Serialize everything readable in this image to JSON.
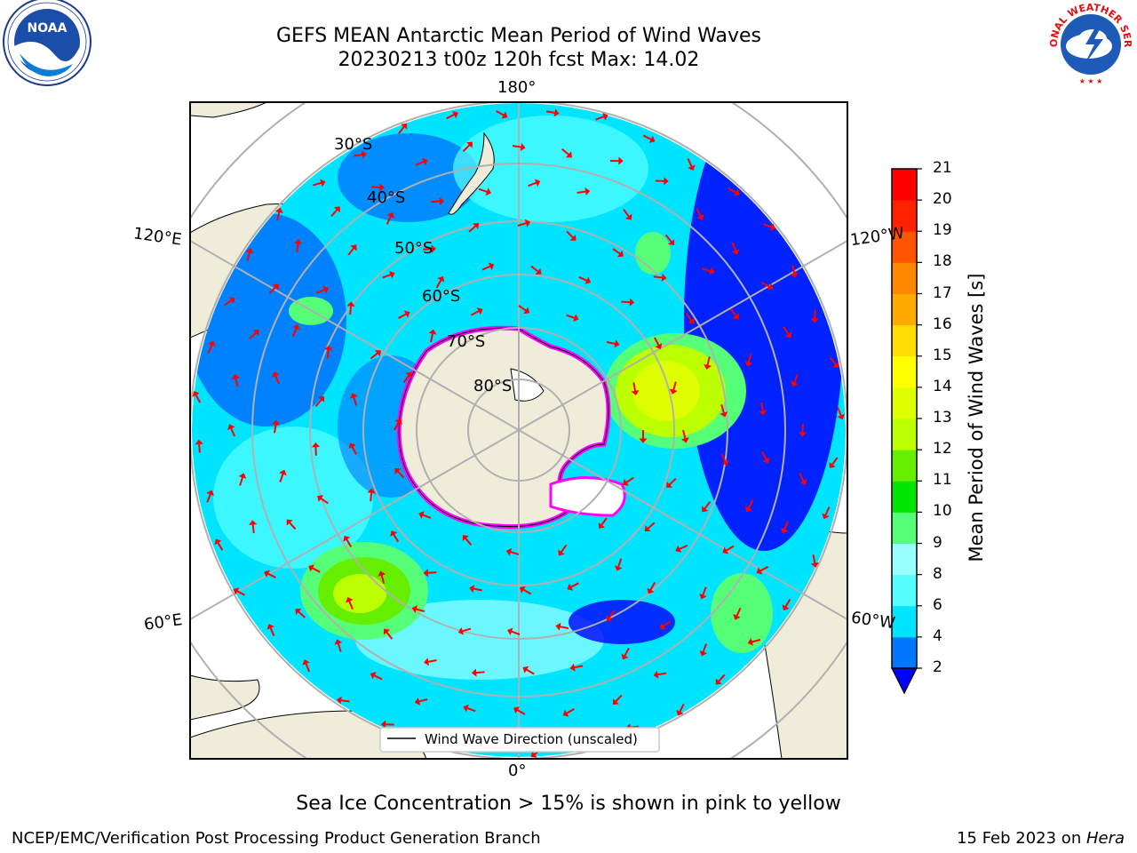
{
  "header": {
    "title_line1": "GEFS MEAN Antarctic Mean Period of Wind Waves",
    "title_line2": "20230213 t00z 120h fcst   Max: 14.02"
  },
  "logos": {
    "left": {
      "name": "NOAA",
      "ring_text": "NATIONAL OCEANIC AND ATMOSPHERIC ADMINISTRATION · U.S. DEPARTMENT OF COMMERCE"
    },
    "right": {
      "name": "NATIONAL WEATHER SERVICE"
    }
  },
  "map": {
    "lon_labels": {
      "top": "180°",
      "bottom": "0°",
      "left_upper": "120°E",
      "left_lower": "60°E",
      "right_upper": "120°W",
      "right_lower": "60°W"
    },
    "lat_labels": [
      "30°S",
      "40°S",
      "50°S",
      "60°S",
      "70°S",
      "80°S"
    ],
    "legend_label": "Wind Wave Direction (unscaled)",
    "colors": {
      "land": "#efedda",
      "ice_edge": "#ff00ff",
      "arrow": "#ff0000",
      "grid": "#b0b0b0"
    }
  },
  "colorbar": {
    "label": "Mean Period of Wind Waves [s]",
    "ticks": [
      "2",
      "4",
      "6",
      "8",
      "9",
      "10",
      "11",
      "12",
      "13",
      "14",
      "15",
      "16",
      "17",
      "18",
      "19",
      "20",
      "21"
    ],
    "colors": [
      "#0077ff",
      "#00e5ff",
      "#55ffff",
      "#99ffff",
      "#55ff77",
      "#00e600",
      "#66ee00",
      "#bbff00",
      "#ddff00",
      "#ffff00",
      "#ffdd00",
      "#ffaa00",
      "#ff8800",
      "#ff5500",
      "#ff2200",
      "#ff0000"
    ],
    "under_color": "#0000ff"
  },
  "footer": {
    "note": "Sea Ice Concentration > 15% is shown in pink to yellow",
    "left": "NCEP/EMC/Verification Post Processing Product Generation Branch",
    "right_prefix": "15 Feb 2023 on ",
    "right_machine": "Hera"
  }
}
